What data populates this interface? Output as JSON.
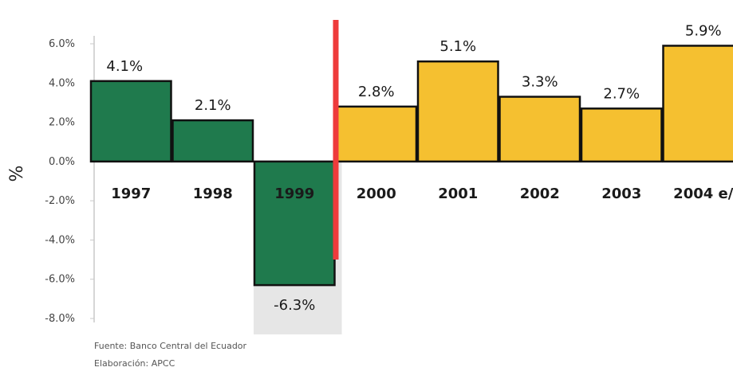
{
  "chart_data": {
    "type": "bar",
    "categories": [
      "1997",
      "1998",
      "1999",
      "2000",
      "2001",
      "2002",
      "2003",
      "2004 e/"
    ],
    "values": [
      4.1,
      2.1,
      -6.3,
      2.8,
      5.1,
      3.3,
      2.7,
      5.9
    ],
    "value_labels": [
      "4.1%",
      "2.1%",
      "-6.3%",
      "2.8%",
      "5.1%",
      "3.3%",
      "2.7%",
      "5.9%"
    ],
    "bar_colors": [
      "#1f7a4d",
      "#1f7a4d",
      "#1f7a4d",
      "#f5c030",
      "#f5c030",
      "#f5c030",
      "#f5c030",
      "#f5c030"
    ],
    "highlight_category_color": "#dcdcdc",
    "divider_color": "#ee3b3b",
    "bar_outline_color": "#111111",
    "y_ticks": [
      "6.0%",
      "4.0%",
      "2.0%",
      "0.0%",
      "-2.0%",
      "-4.0%",
      "-6.0%",
      "-8.0%"
    ],
    "ylabel": "%",
    "ylim": [
      -8,
      6
    ],
    "legend": "none",
    "grid": false
  },
  "notes": {
    "source": "Fuente: Banco Central del Ecuador",
    "credit": "Elaboración: APCC"
  }
}
